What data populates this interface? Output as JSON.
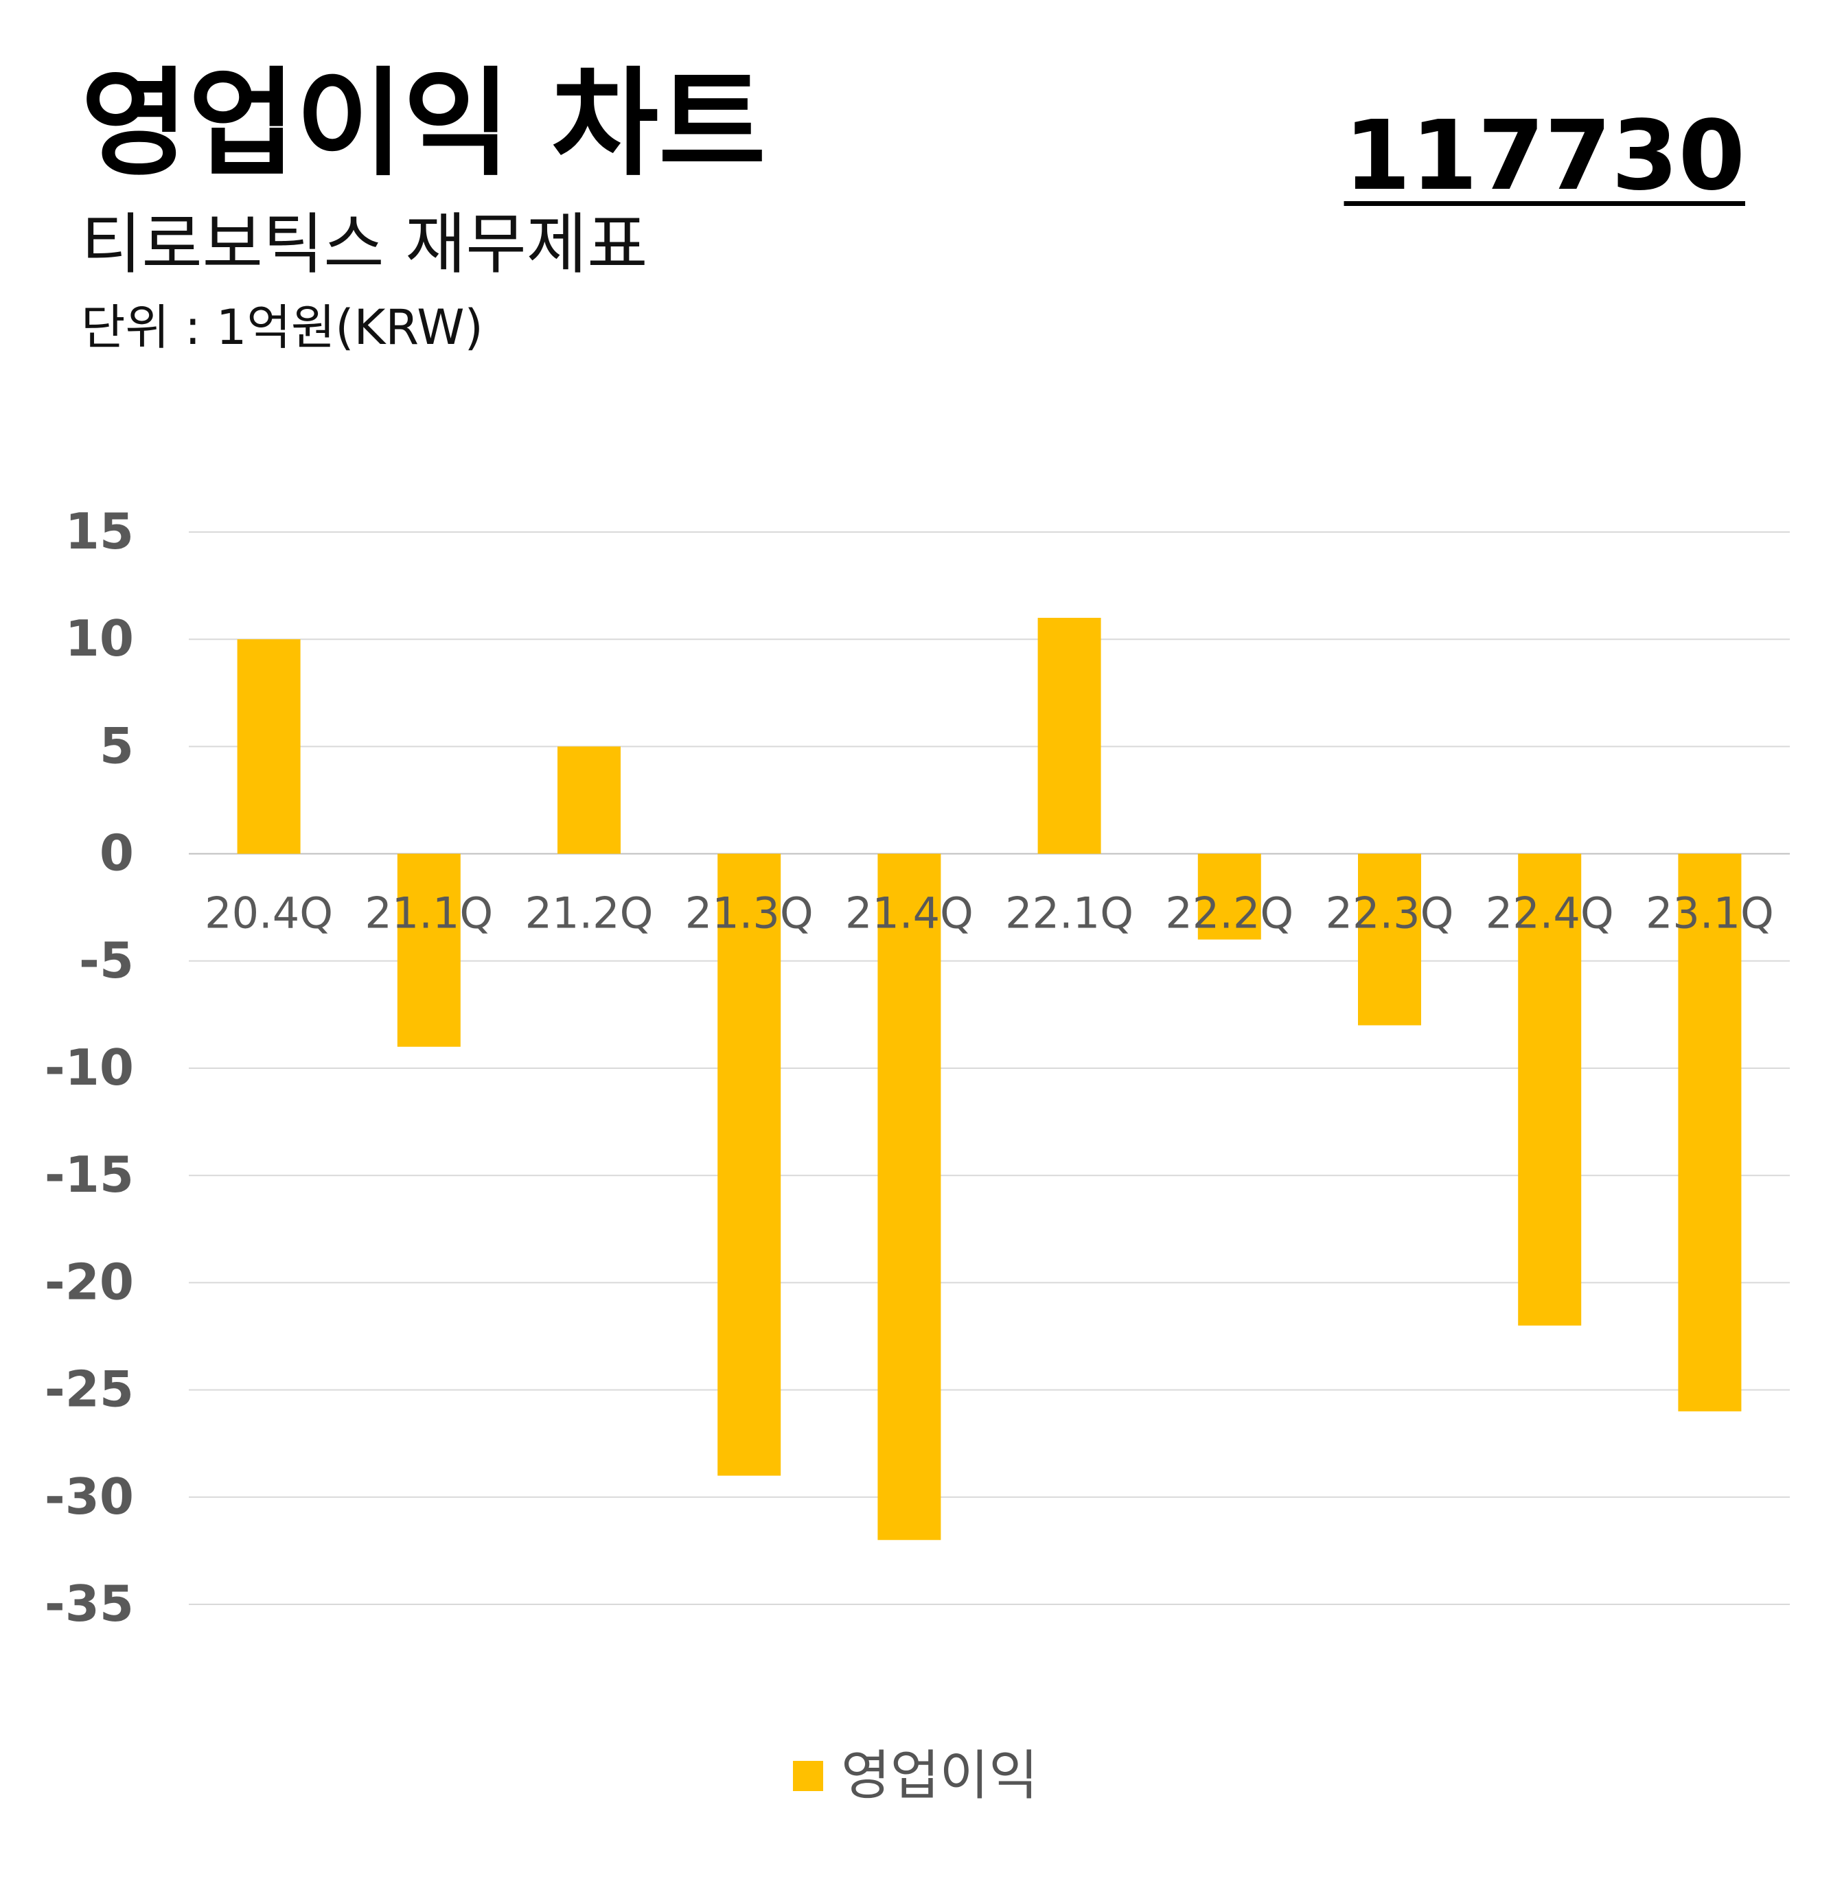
{
  "header": {
    "title": "영업이익 차트",
    "subtitle": "티로보틱스 재무제표",
    "unit": "단위 : 1억원(KRW)",
    "code": "117730"
  },
  "colors": {
    "bar": "#FFC000",
    "grid": "#D9D9D9",
    "axis_text": "#595959",
    "cat_text": "#595959"
  },
  "chart_data": {
    "type": "bar",
    "categories": [
      "20.4Q",
      "21.1Q",
      "21.2Q",
      "21.3Q",
      "21.4Q",
      "22.1Q",
      "22.2Q",
      "22.3Q",
      "22.4Q",
      "23.1Q"
    ],
    "series": [
      {
        "name": "영업이익",
        "values": [
          10,
          -9,
          5,
          -29,
          -32,
          11,
          -4,
          -8,
          -22,
          -26
        ]
      }
    ],
    "yticks": [
      "15",
      "10",
      "5",
      "0",
      "-5",
      "-10",
      "-15",
      "-20",
      "-25",
      "-30",
      "-35"
    ],
    "ylim": [
      -35,
      15
    ],
    "grid": true,
    "legend": "bottom-center"
  }
}
